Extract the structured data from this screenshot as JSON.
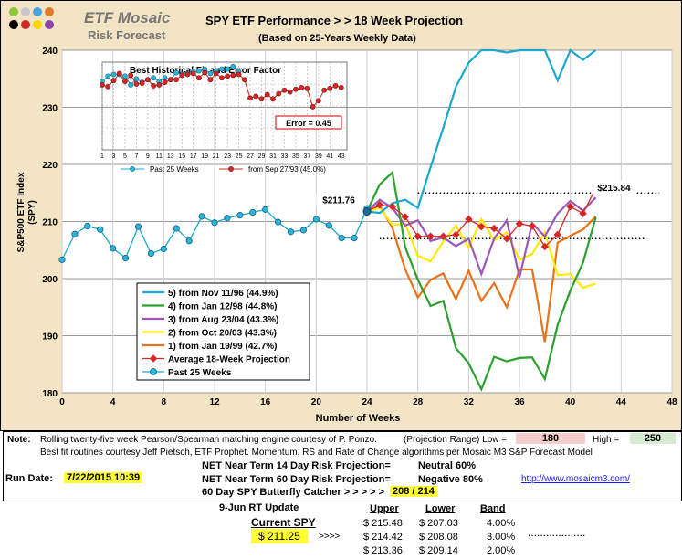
{
  "logo": {
    "line1": "ETF Mosaic",
    "line2": "Risk Forecast",
    "dots": [
      "#8cc63f",
      "#c8c8c8",
      "#4aa3df",
      "#e07b28",
      "#000000",
      "#d62728",
      "#ffd700",
      "#8e44ad"
    ]
  },
  "header": {
    "title": "SPY ETF Performance > > 18 Week Projection",
    "subtitle": "(Based on 25-Years Weekly Data)"
  },
  "colors": {
    "past": "#1ba8d0",
    "s5": "#1ba8d0",
    "s4": "#2ca02c",
    "s3": "#9b59b6",
    "s2": "#ffea00",
    "s1": "#e8731a",
    "avg": "#d62728",
    "bg": "#f2e4c4"
  },
  "chart_data": [
    {
      "type": "line",
      "title": "",
      "xlabel": "Number of Weeks",
      "ylabel": "S&P500 ETF Index (SPY)",
      "xlim": [
        0,
        48
      ],
      "ylim": [
        180,
        240
      ],
      "xticks": [
        "0",
        "4",
        "8",
        "12",
        "16",
        "20",
        "24",
        "28",
        "32",
        "36",
        "40",
        "44",
        "48"
      ],
      "yticks": [
        "180",
        "190",
        "200",
        "210",
        "220",
        "230",
        "240"
      ],
      "legend_position": "bottom-left",
      "annotations": [
        {
          "text": "$211.76",
          "x": 24,
          "y": 211.76
        },
        {
          "text": "$215.84",
          "x": 42,
          "y": 215.84
        }
      ],
      "reference_lines": [
        {
          "x": [
            28,
            47
          ],
          "y": 215
        },
        {
          "x": [
            25,
            46
          ],
          "y": 207
        }
      ],
      "series": [
        {
          "key": "past",
          "name": "Past 25 Weeks",
          "x": [
            0,
            1,
            2,
            3,
            4,
            5,
            6,
            7,
            8,
            9,
            10,
            11,
            12,
            13,
            14,
            15,
            16,
            17,
            18,
            19,
            20,
            21,
            22,
            23,
            24
          ],
          "values": [
            203.3,
            207.8,
            209.2,
            208.6,
            205.3,
            203.6,
            209.1,
            204.4,
            205.2,
            208.8,
            206.6,
            210.9,
            209.8,
            210.6,
            211.1,
            211.6,
            212.1,
            209.9,
            208.2,
            208.5,
            210.4,
            209.3,
            207.1,
            207.1,
            212.3
          ]
        },
        {
          "key": "s5",
          "name": "5) from Nov 11/96 (44.9%)",
          "x": [
            24,
            25,
            26,
            27,
            28,
            29,
            30,
            31,
            32,
            33,
            34,
            35,
            36,
            37,
            38,
            39,
            40,
            41,
            42
          ],
          "values": [
            211.76,
            211.5,
            213.2,
            213.8,
            212.4,
            219.5,
            226.4,
            233.6,
            237.8,
            241.9,
            242.5,
            239.6,
            244.3,
            242.3,
            247.1,
            234.7,
            241.4,
            238.3,
            240.2
          ]
        },
        {
          "key": "s4",
          "name": "4) from Jan 12/98 (44.8%)",
          "x": [
            24,
            25,
            26,
            27,
            28,
            29,
            30,
            31,
            32,
            33,
            34,
            35,
            36,
            37,
            38,
            39,
            40,
            41,
            42
          ],
          "values": [
            211.76,
            216.5,
            218.6,
            205.5,
            199.8,
            195.2,
            196.1,
            187.8,
            185.2,
            180.6,
            186.3,
            185.5,
            186.1,
            186.2,
            182.4,
            191.9,
            197.9,
            202.8,
            210.7
          ]
        },
        {
          "key": "s3",
          "name": "3) from Aug 23/04 (43.3%)",
          "x": [
            24,
            25,
            26,
            27,
            28,
            29,
            30,
            31,
            32,
            33,
            34,
            35,
            36,
            37,
            38,
            39,
            40,
            41,
            42
          ],
          "values": [
            211.76,
            213.8,
            212.4,
            209.3,
            210.2,
            206.6,
            207.2,
            205.7,
            207.0,
            200.8,
            207.0,
            210.2,
            200.2,
            209.7,
            207.4,
            211.4,
            213.6,
            211.9,
            214.2
          ]
        },
        {
          "key": "s2",
          "name": "2) from Oct 20/03 (43.3%)",
          "x": [
            24,
            25,
            26,
            27,
            28,
            29,
            30,
            31,
            32,
            33,
            34,
            35,
            36,
            37,
            38,
            39,
            40,
            41,
            42
          ],
          "values": [
            211.76,
            212.4,
            209.4,
            209.6,
            204.0,
            203.0,
            206.5,
            209.3,
            205.4,
            210.4,
            206.7,
            208.1,
            203.3,
            204.3,
            208.1,
            200.6,
            200.8,
            198.4,
            199.1
          ]
        },
        {
          "key": "s1",
          "name": "1) from Jan 19/99 (42.7%)",
          "x": [
            24,
            25,
            26,
            27,
            28,
            29,
            30,
            31,
            32,
            33,
            34,
            35,
            36,
            37,
            38,
            39,
            40,
            41,
            42
          ],
          "values": [
            211.76,
            212.8,
            208.9,
            201.6,
            196.7,
            199.8,
            200.9,
            196.4,
            201.4,
            196.1,
            199.2,
            195.0,
            201.6,
            201.6,
            188.9,
            206.3,
            207.5,
            208.6,
            210.9
          ]
        },
        {
          "key": "avg",
          "name": "Average 18-Week Projection",
          "x": [
            24,
            25,
            26,
            27,
            28,
            29,
            30,
            31,
            32,
            33,
            34,
            35,
            36,
            37,
            38,
            39,
            40,
            41,
            42
          ],
          "values": [
            211.76,
            212.9,
            212.6,
            210.8,
            207.4,
            207.4,
            207.4,
            207.7,
            210.4,
            209.1,
            208.8,
            207.0,
            209.6,
            209.2,
            205.6,
            207.7,
            212.6,
            211.4,
            215.84
          ]
        }
      ]
    },
    {
      "type": "line",
      "title": "Best Historical Fit and Error Factor",
      "xlim": [
        1,
        44
      ],
      "ylim": [
        0,
        1
      ],
      "xticks": [
        "1",
        "3",
        "5",
        "7",
        "9",
        "11",
        "13",
        "15",
        "17",
        "19",
        "21",
        "23",
        "25",
        "27",
        "29",
        "31",
        "33",
        "35",
        "37",
        "39",
        "41",
        "43"
      ],
      "annotations": [
        {
          "text": "Error = 0.45"
        }
      ],
      "series": [
        {
          "key": "inset-past",
          "name": "Past 25 Weeks",
          "x": [
            1,
            2,
            3,
            4,
            5,
            6,
            7,
            8,
            9,
            10,
            11,
            12,
            13,
            14,
            15,
            16,
            17,
            18,
            19,
            20,
            21,
            22,
            23,
            24,
            25
          ],
          "values": [
            0.78,
            0.84,
            0.86,
            0.86,
            0.84,
            0.74,
            0.81,
            0.77,
            0.8,
            0.82,
            0.78,
            0.82,
            0.8,
            0.88,
            0.86,
            0.87,
            0.89,
            0.9,
            0.92,
            0.87,
            0.9,
            0.92,
            0.92,
            0.95,
            0.89
          ]
        },
        {
          "key": "inset-fit",
          "name": "from Sep 27/93 (45.0%)",
          "x": [
            1,
            2,
            3,
            4,
            5,
            6,
            7,
            8,
            9,
            10,
            11,
            12,
            13,
            14,
            15,
            16,
            17,
            18,
            19,
            20,
            21,
            22,
            23,
            24,
            25,
            26,
            27,
            28,
            29,
            30,
            31,
            32,
            33,
            34,
            35,
            36,
            37,
            38,
            39,
            40,
            41,
            42,
            43
          ],
          "values": [
            0.74,
            0.72,
            0.79,
            0.87,
            0.78,
            0.85,
            0.75,
            0.76,
            0.8,
            0.73,
            0.74,
            0.77,
            0.8,
            0.8,
            0.85,
            0.86,
            0.87,
            0.82,
            0.88,
            0.8,
            0.87,
            0.82,
            0.84,
            0.85,
            0.86,
            0.8,
            0.59,
            0.61,
            0.58,
            0.63,
            0.58,
            0.64,
            0.68,
            0.66,
            0.69,
            0.71,
            0.7,
            0.49,
            0.56,
            0.68,
            0.7,
            0.73,
            0.71
          ]
        }
      ]
    }
  ],
  "notes": {
    "label": "Note:",
    "line1": "Rolling twenty-five week Pearson/Spearman matching engine courtesy of P. Ponzo.",
    "range_label": "(Projection Range) Low =",
    "low": "180",
    "high_label": "High =",
    "high": "250",
    "line2": "Best fit routines courtesy Jeff Pietsch, ETF Prophet.  Momentum, RS and Rate of Change algorithms per Mosaic M3 S&P Forecast Model",
    "run_date_label": "Run Date:",
    "run_date": "7/22/2015 10:39",
    "risk14_label": "NET Near Term 14 Day Risk Projection=",
    "risk14_value": "Neutral 60%",
    "risk60_label": "NET Near Term 60 Day Risk Projection=",
    "risk60_value": "Negative 80%",
    "url": "http://www.mosaicm3.com/",
    "butterfly_label": "60 Day SPY Butterfly Catcher > > > > >",
    "butterfly_value": "208 / 214"
  },
  "update": {
    "title": "9-Jun  RT Update",
    "current_label": "Current SPY",
    "current_value": "$ 211.25",
    "arrows": ">>>>",
    "headers": [
      "Upper",
      "Lower",
      "Band"
    ],
    "rows": [
      {
        "upper": "$  215.48",
        "lower": "$  207.03",
        "band": "4.00%"
      },
      {
        "upper": "$  214.42",
        "lower": "$  208.08",
        "band": "3.00%"
      },
      {
        "upper": "$  213.36",
        "lower": "$  209.14",
        "band": "2.00%"
      }
    ]
  }
}
